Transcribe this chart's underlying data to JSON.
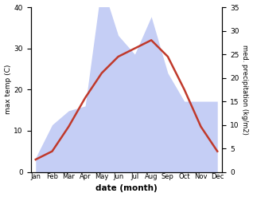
{
  "months": [
    "Jan",
    "Feb",
    "Mar",
    "Apr",
    "May",
    "Jun",
    "Jul",
    "Aug",
    "Sep",
    "Oct",
    "Nov",
    "Dec"
  ],
  "temp": [
    3,
    5,
    11,
    18,
    24,
    28,
    30,
    32,
    28,
    20,
    11,
    5
  ],
  "precip": [
    3,
    10,
    13,
    14,
    40,
    29,
    25,
    33,
    21,
    15,
    15,
    15
  ],
  "temp_color": "#c0392b",
  "precip_color_fill": "#c5cef5",
  "temp_ylim": [
    0,
    40
  ],
  "precip_ylim": [
    0,
    35
  ],
  "temp_yticks": [
    0,
    10,
    20,
    30,
    40
  ],
  "precip_yticks": [
    0,
    5,
    10,
    15,
    20,
    25,
    30,
    35
  ],
  "xlabel": "date (month)",
  "ylabel_left": "max temp (C)",
  "ylabel_right": "med. precipitation (kg/m2)"
}
